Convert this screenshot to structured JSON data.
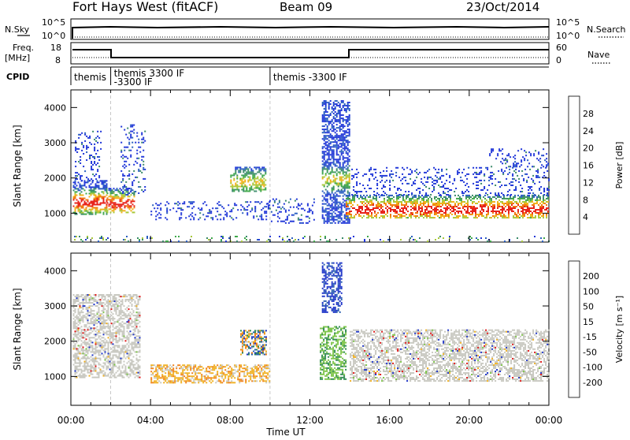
{
  "header": {
    "station": "Fort Hays West (fitACF)",
    "beam": "Beam 09",
    "date": "23/Oct/2014"
  },
  "top_panels": {
    "nsky_label": "N.Sky",
    "nsky_ticks": [
      "10^5",
      "10^0"
    ],
    "nsearch_label": "N.Search",
    "nsearch_ticks": [
      "10^5",
      "10^0"
    ],
    "freq_label": "Freq.",
    "freq_unit": "[MHz]",
    "freq_ticks": [
      "18",
      "8"
    ],
    "nave_label": "Nave",
    "nave_ticks": [
      "60",
      "0"
    ],
    "cpid_label": "CPID",
    "cpid_segments": [
      {
        "t0": 0.0,
        "t1": 2.0,
        "lines": [
          "themis"
        ]
      },
      {
        "t0": 2.0,
        "t1": 10.0,
        "lines": [
          "themis 3300 IF",
          "-3300 IF"
        ]
      },
      {
        "t0": 10.0,
        "t1": 24.0,
        "lines": [
          "themis -3300 IF"
        ]
      }
    ]
  },
  "colors": {
    "power": [
      "#1f35d8",
      "#2a5fc0",
      "#3a8a6a",
      "#3fa84a",
      "#a8c83a",
      "#f2b21b",
      "#f07a12",
      "#e8241c"
    ],
    "velocity": [
      "#1f35c8",
      "#2c60b0",
      "#2f8a50",
      "#7cc448",
      "#c8c8c0",
      "#c8c8c0",
      "#f0b020",
      "#f08018",
      "#e85018",
      "#e01818"
    ]
  },
  "chart_data": [
    {
      "type": "heatmap",
      "name": "Power",
      "xlabel": "Time UT",
      "ylabel": "Slant Range [km]",
      "xlim": [
        0,
        24
      ],
      "ylim": [
        180,
        4500
      ],
      "x_ticks": [
        "00:00",
        "04:00",
        "08:00",
        "12:00",
        "16:00",
        "20:00",
        "00:00"
      ],
      "y_ticks": [
        1000,
        2000,
        3000,
        4000
      ],
      "colorbar": {
        "label": "Power [dB]",
        "ticks": [
          "4",
          "8",
          "12",
          "16",
          "20",
          "24",
          "28"
        ]
      },
      "regions": [
        {
          "t0": 0.1,
          "t1": 1.8,
          "r0": 950,
          "r1": 1900,
          "level": "strong"
        },
        {
          "t0": 0.2,
          "t1": 1.5,
          "r0": 1900,
          "r1": 3300,
          "level": "weak"
        },
        {
          "t0": 1.8,
          "t1": 3.2,
          "r0": 1000,
          "r1": 1700,
          "level": "strong"
        },
        {
          "t0": 2.5,
          "t1": 3.7,
          "r0": 1500,
          "r1": 3500,
          "level": "weak"
        },
        {
          "t0": 4.0,
          "t1": 10.0,
          "r0": 800,
          "r1": 1300,
          "level": "weak"
        },
        {
          "t0": 8.0,
          "t1": 9.8,
          "r0": 1600,
          "r1": 2300,
          "level": "medium"
        },
        {
          "t0": 9.8,
          "t1": 12.2,
          "r0": 700,
          "r1": 1400,
          "level": "weak"
        },
        {
          "t0": 12.6,
          "t1": 14.0,
          "r0": 700,
          "r1": 4200,
          "level": "medium"
        },
        {
          "t0": 13.8,
          "t1": 24.0,
          "r0": 850,
          "r1": 1500,
          "level": "strong"
        },
        {
          "t0": 14.0,
          "t1": 24.0,
          "r0": 1500,
          "r1": 2300,
          "level": "weak"
        },
        {
          "t0": 21.0,
          "t1": 24.0,
          "r0": 2300,
          "r1": 2800,
          "level": "weak"
        },
        {
          "t0": 0.0,
          "t1": 24.0,
          "r0": 180,
          "r1": 350,
          "level": "ground"
        }
      ]
    },
    {
      "type": "heatmap",
      "name": "Velocity",
      "xlabel": "Time UT",
      "ylabel": "Slant Range [km]",
      "xlim": [
        0,
        24
      ],
      "ylim": [
        180,
        4500
      ],
      "x_ticks": [
        "00:00",
        "04:00",
        "08:00",
        "12:00",
        "16:00",
        "20:00",
        "00:00"
      ],
      "y_ticks": [
        1000,
        2000,
        3000,
        4000
      ],
      "colorbar": {
        "label": "Velocity [m s⁻¹]",
        "ticks": [
          "200",
          "100",
          "50",
          "15",
          "-15",
          "-50",
          "-100",
          "-200"
        ]
      },
      "regions": [
        {
          "t0": 0.1,
          "t1": 3.5,
          "r0": 950,
          "r1": 3300,
          "level": "near-zero"
        },
        {
          "t0": 4.0,
          "t1": 10.0,
          "r0": 800,
          "r1": 1300,
          "level": "negative"
        },
        {
          "t0": 8.5,
          "t1": 9.8,
          "r0": 1600,
          "r1": 2300,
          "level": "mixed-positive"
        },
        {
          "t0": 12.6,
          "t1": 13.6,
          "r0": 2800,
          "r1": 4200,
          "level": "high-positive"
        },
        {
          "t0": 12.5,
          "t1": 13.8,
          "r0": 900,
          "r1": 2400,
          "level": "positive"
        },
        {
          "t0": 14.0,
          "t1": 24.0,
          "r0": 850,
          "r1": 2300,
          "level": "near-zero"
        }
      ]
    }
  ]
}
